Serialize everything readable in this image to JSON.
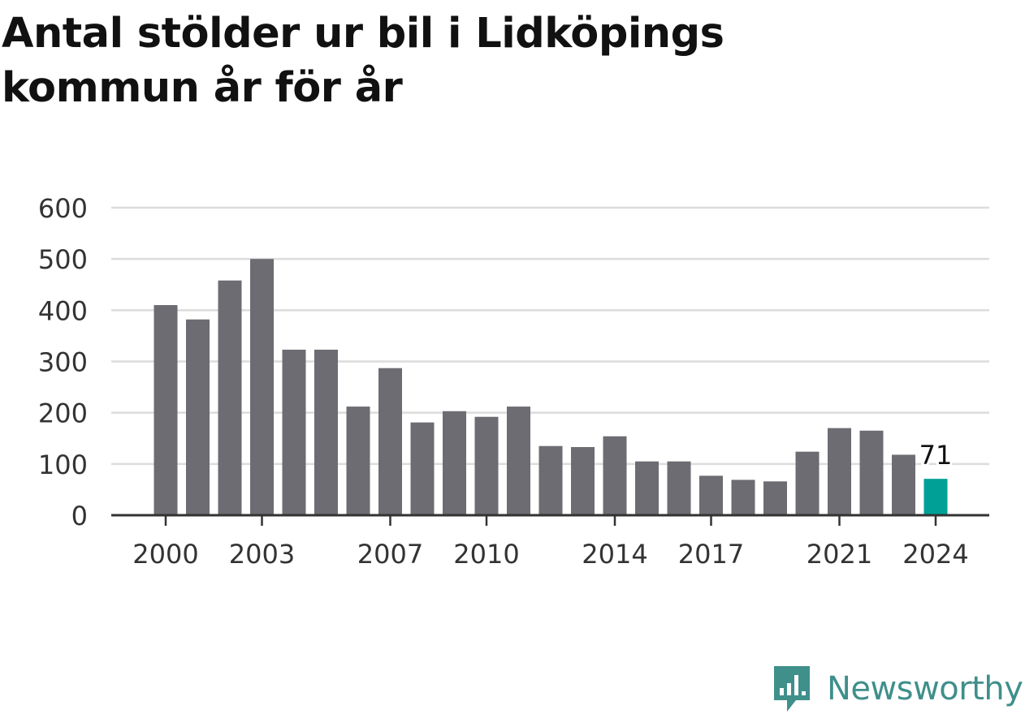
{
  "title": "Antal stölder ur bil i Lidköpings kommun år för år",
  "brand": {
    "name": "Newsworthy",
    "icon": "newsworthy-logo-icon",
    "color": "#3f8f8b"
  },
  "colors": {
    "bar": "#6d6c72",
    "highlight": "#00a097",
    "grid": "#dcdcdc",
    "axis": "#333333",
    "text": "#333333"
  },
  "chart_data": {
    "type": "bar",
    "title": "Antal stölder ur bil i Lidköpings kommun år för år",
    "xlabel": "",
    "ylabel": "",
    "categories": [
      2000,
      2001,
      2002,
      2003,
      2004,
      2005,
      2006,
      2007,
      2008,
      2009,
      2010,
      2011,
      2012,
      2013,
      2014,
      2015,
      2016,
      2017,
      2018,
      2019,
      2020,
      2021,
      2022,
      2023,
      2024
    ],
    "values": [
      410,
      382,
      458,
      500,
      323,
      323,
      212,
      287,
      181,
      203,
      192,
      212,
      135,
      133,
      154,
      105,
      105,
      77,
      69,
      66,
      124,
      170,
      165,
      118,
      71
    ],
    "ylim": [
      0,
      600
    ],
    "yticks": [
      0,
      100,
      200,
      300,
      400,
      500,
      600
    ],
    "xtick_labels": [
      2000,
      2003,
      2007,
      2010,
      2014,
      2017,
      2021,
      2024
    ],
    "highlight": {
      "category": 2024,
      "value": 71,
      "label": "71"
    },
    "grid": true,
    "legend": "none"
  }
}
